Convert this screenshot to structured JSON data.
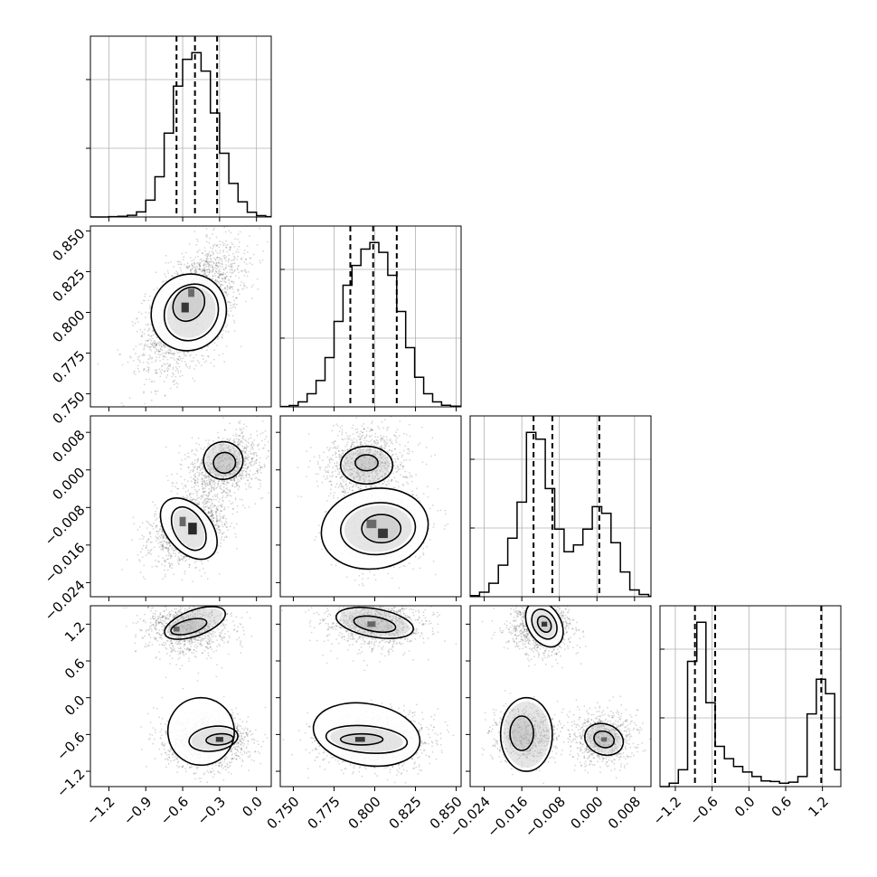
{
  "chart_data": {
    "type": "corner",
    "n_params": 4,
    "colors": {
      "frame": "#000000",
      "grid": "#b0b0b0",
      "density": "#000000",
      "quantile_line": "#000000"
    },
    "grid": true,
    "ranges": [
      [
        -1.35,
        0.12
      ],
      [
        0.742,
        0.853
      ],
      [
        -0.027,
        0.0115
      ],
      [
        -1.45,
        1.5
      ]
    ],
    "ticks": [
      [
        {
          "v": -1.2,
          "label": "−1.2"
        },
        {
          "v": -0.9,
          "label": "−0.9"
        },
        {
          "v": -0.6,
          "label": "−0.6"
        },
        {
          "v": -0.3,
          "label": "−0.3"
        },
        {
          "v": 0.0,
          "label": "0.0"
        }
      ],
      [
        {
          "v": 0.75,
          "label": "0.750"
        },
        {
          "v": 0.775,
          "label": "0.775"
        },
        {
          "v": 0.8,
          "label": "0.800"
        },
        {
          "v": 0.825,
          "label": "0.825"
        },
        {
          "v": 0.85,
          "label": "0.850"
        }
      ],
      [
        {
          "v": -0.024,
          "label": "−0.024"
        },
        {
          "v": -0.016,
          "label": "−0.016"
        },
        {
          "v": -0.008,
          "label": "−0.008"
        },
        {
          "v": 0.0,
          "label": "0.000"
        },
        {
          "v": 0.008,
          "label": "0.008"
        }
      ],
      [
        {
          "v": -1.2,
          "label": "−1.2"
        },
        {
          "v": -0.6,
          "label": "−0.6"
        },
        {
          "v": 0.0,
          "label": "0.0"
        },
        {
          "v": 0.6,
          "label": "0.6"
        },
        {
          "v": 1.2,
          "label": "1.2"
        }
      ]
    ],
    "marginals": [
      {
        "param_index": 0,
        "bin_edges": [
          -1.35,
          -1.275,
          -1.2,
          -1.125,
          -1.05,
          -0.975,
          -0.9,
          -0.825,
          -0.75,
          -0.675,
          -0.6,
          -0.525,
          -0.45,
          -0.375,
          -0.3,
          -0.225,
          -0.15,
          -0.075,
          0.0,
          0.075,
          0.12
        ],
        "counts": [
          0,
          0,
          1,
          2,
          5,
          15,
          50,
          120,
          250,
          390,
          470,
          490,
          435,
          310,
          190,
          100,
          45,
          14,
          4,
          1
        ],
        "quantiles": [
          -0.65,
          -0.5,
          -0.32
        ]
      },
      {
        "param_index": 1,
        "bin_edges": [
          0.742,
          0.7475,
          0.753,
          0.7585,
          0.764,
          0.7695,
          0.775,
          0.7805,
          0.786,
          0.7915,
          0.797,
          0.8025,
          0.808,
          0.8135,
          0.819,
          0.8245,
          0.83,
          0.8355,
          0.841,
          0.8465,
          0.853
        ],
        "counts": [
          1,
          4,
          15,
          40,
          80,
          150,
          260,
          370,
          430,
          480,
          500,
          470,
          400,
          290,
          180,
          90,
          40,
          15,
          5,
          2
        ],
        "quantiles": [
          0.785,
          0.799,
          0.8135
        ]
      },
      {
        "param_index": 2,
        "bin_edges": [
          -0.027,
          -0.025,
          -0.023,
          -0.021,
          -0.019,
          -0.017,
          -0.015,
          -0.013,
          -0.011,
          -0.009,
          -0.007,
          -0.005,
          -0.003,
          -0.001,
          0.001,
          0.003,
          0.005,
          0.007,
          0.009,
          0.011,
          0.0115
        ],
        "counts": [
          5,
          20,
          60,
          140,
          260,
          420,
          730,
          700,
          480,
          300,
          200,
          230,
          300,
          400,
          370,
          240,
          110,
          30,
          10,
          2
        ],
        "quantiles": [
          -0.0135,
          -0.0095,
          0.0005
        ]
      },
      {
        "param_index": 3,
        "bin_edges": [
          -1.45,
          -1.3,
          -1.15,
          -1.0,
          -0.85,
          -0.7,
          -0.55,
          -0.4,
          -0.25,
          -0.1,
          0.05,
          0.2,
          0.35,
          0.5,
          0.65,
          0.8,
          0.95,
          1.1,
          1.25,
          1.4,
          1.5
        ],
        "counts": [
          0,
          30,
          150,
          1120,
          1470,
          750,
          360,
          250,
          180,
          130,
          90,
          50,
          45,
          30,
          40,
          90,
          650,
          960,
          830,
          150
        ],
        "quantiles": [
          -0.88,
          -0.55,
          1.18
        ]
      }
    ],
    "joints": [
      {
        "x_param": 0,
        "y_param": 1,
        "spread_x": 0.19,
        "spread_y": 0.019,
        "corr": 0.55,
        "n_points": 2600,
        "box": true,
        "modes": [
          {
            "x": -0.52,
            "y": 0.803,
            "weight": 1.0
          }
        ],
        "contours": [
          [
            [
              -0.55,
              0.8
            ],
            [
              0.3,
              0.024
            ],
            35
          ],
          [
            [
              -0.53,
              0.8
            ],
            [
              0.21,
              0.018
            ],
            35
          ],
          [
            [
              -0.55,
              0.805
            ],
            [
              0.12,
              0.011
            ],
            35
          ]
        ],
        "hot_cells": [
          [
            -0.58,
            0.803,
            0.06,
            0.006
          ],
          [
            -0.53,
            0.812,
            0.05,
            0.005
          ]
        ]
      },
      {
        "x_param": 0,
        "y_param": 2,
        "spread_x": 0.15,
        "spread_y": 0.0035,
        "corr": 0.3,
        "n_points": 2600,
        "box": true,
        "modes": [
          {
            "x": -0.55,
            "y": -0.0125,
            "weight": 0.6
          },
          {
            "x": -0.25,
            "y": 0.001,
            "weight": 0.4
          }
        ],
        "contours": [
          [
            [
              -0.55,
              -0.0125
            ],
            [
              0.18,
              0.0075
            ],
            -40
          ],
          [
            [
              -0.55,
              -0.0125
            ],
            [
              0.12,
              0.005
            ],
            -30
          ],
          [
            [
              -0.27,
              0.002
            ],
            [
              0.16,
              0.004
            ],
            -5
          ],
          [
            [
              -0.26,
              0.0015
            ],
            [
              0.09,
              0.0022
            ],
            -5
          ]
        ],
        "hot_cells": [
          [
            -0.52,
            -0.0125,
            0.07,
            0.0025
          ],
          [
            -0.6,
            -0.011,
            0.05,
            0.002
          ]
        ]
      },
      {
        "x_param": 1,
        "y_param": 2,
        "spread_x": 0.013,
        "spread_y": 0.0038,
        "corr": 0.1,
        "n_points": 2600,
        "box": true,
        "modes": [
          {
            "x": 0.802,
            "y": -0.0125,
            "weight": 0.6
          },
          {
            "x": 0.795,
            "y": 0.0015,
            "weight": 0.4
          }
        ],
        "contours": [
          [
            [
              0.8,
              -0.0125
            ],
            [
              0.033,
              0.0085
            ],
            -10
          ],
          [
            [
              0.802,
              -0.0125
            ],
            [
              0.023,
              0.0055
            ],
            -5
          ],
          [
            [
              0.804,
              -0.0125
            ],
            [
              0.012,
              0.003
            ],
            0
          ],
          [
            [
              0.795,
              0.001
            ],
            [
              0.016,
              0.004
            ],
            0
          ],
          [
            [
              0.795,
              0.0015
            ],
            [
              0.007,
              0.0017
            ],
            0
          ]
        ],
        "hot_cells": [
          [
            0.805,
            -0.0135,
            0.006,
            0.002
          ],
          [
            0.798,
            -0.0115,
            0.006,
            0.0018
          ]
        ]
      },
      {
        "x_param": 0,
        "y_param": 3,
        "spread_x": 0.17,
        "spread_y": 0.22,
        "corr": 0.0,
        "n_points": 2600,
        "box": false,
        "modes": [
          {
            "x": -0.4,
            "y": -0.7,
            "weight": 0.6
          },
          {
            "x": -0.55,
            "y": 1.15,
            "weight": 0.4
          }
        ],
        "contours": [
          [
            [
              -0.45,
              -0.55
            ],
            [
              0.27,
              0.55
            ],
            -10
          ],
          [
            [
              -0.35,
              -0.67
            ],
            [
              0.2,
              0.2
            ],
            -8
          ],
          [
            [
              -0.3,
              -0.68
            ],
            [
              0.11,
              0.09
            ],
            -5
          ],
          [
            [
              -0.5,
              1.22
            ],
            [
              0.26,
              0.21
            ],
            -20
          ],
          [
            [
              -0.55,
              1.16
            ],
            [
              0.15,
              0.11
            ],
            -15
          ]
        ],
        "hot_cells": [
          [
            -0.3,
            -0.68,
            0.06,
            0.08
          ],
          [
            -0.65,
            1.12,
            0.05,
            0.08
          ]
        ]
      },
      {
        "x_param": 1,
        "y_param": 3,
        "spread_x": 0.016,
        "spread_y": 0.22,
        "corr": 0.0,
        "n_points": 2600,
        "box": false,
        "modes": [
          {
            "x": 0.8,
            "y": -0.7,
            "weight": 0.6
          },
          {
            "x": 0.8,
            "y": 1.2,
            "weight": 0.4
          }
        ],
        "contours": [
          [
            [
              0.795,
              -0.6
            ],
            [
              0.033,
              0.5
            ],
            10
          ],
          [
            [
              0.795,
              -0.68
            ],
            [
              0.025,
              0.22
            ],
            5
          ],
          [
            [
              0.792,
              -0.68
            ],
            [
              0.013,
              0.09
            ],
            0
          ],
          [
            [
              0.8,
              1.22
            ],
            [
              0.024,
              0.23
            ],
            10
          ],
          [
            [
              0.8,
              1.2
            ],
            [
              0.013,
              0.12
            ],
            10
          ]
        ],
        "hot_cells": [
          [
            0.791,
            -0.68,
            0.006,
            0.08
          ],
          [
            0.798,
            1.2,
            0.005,
            0.09
          ]
        ]
      },
      {
        "x_param": 2,
        "y_param": 3,
        "spread_x": 0.0035,
        "spread_y": 0.22,
        "corr": 0.0,
        "n_points": 2600,
        "box": false,
        "modes": [
          {
            "x": -0.012,
            "y": 1.15,
            "weight": 0.4
          },
          {
            "x": -0.015,
            "y": -0.6,
            "weight": 0.3
          },
          {
            "x": 0.0015,
            "y": -0.65,
            "weight": 0.3
          }
        ],
        "contours": [
          [
            [
              -0.0112,
              1.2
            ],
            [
              0.0035,
              0.4
            ],
            -30
          ],
          [
            [
              -0.0112,
              1.2
            ],
            [
              0.0024,
              0.26
            ],
            -30
          ],
          [
            [
              -0.0112,
              1.2
            ],
            [
              0.0013,
              0.14
            ],
            -30
          ],
          [
            [
              -0.015,
              -0.6
            ],
            [
              0.0055,
              0.6
            ],
            0
          ],
          [
            [
              0.0015,
              -0.68
            ],
            [
              0.0042,
              0.25
            ],
            20
          ],
          [
            [
              0.0015,
              -0.68
            ],
            [
              0.0022,
              0.13
            ],
            20
          ],
          [
            [
              -0.016,
              -0.58
            ],
            [
              0.0025,
              0.28
            ],
            0
          ]
        ],
        "hot_cells": [
          [
            -0.0112,
            1.2,
            0.0012,
            0.08
          ],
          [
            0.0015,
            -0.68,
            0.0012,
            0.07
          ]
        ]
      }
    ]
  }
}
